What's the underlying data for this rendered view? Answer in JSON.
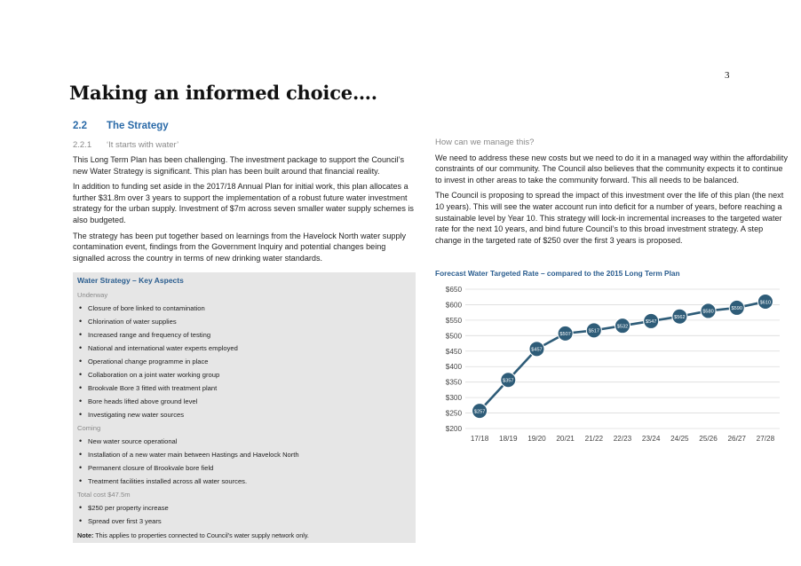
{
  "page_number": "3",
  "heading": "Making an informed choice….",
  "section": {
    "number": "2.2",
    "title": "The Strategy"
  },
  "subsection": {
    "number": "2.2.1",
    "title": "‘It starts with water’"
  },
  "left_paragraphs": [
    "This Long Term Plan has been challenging. The investment package to support the Council’s new Water Strategy is significant. This plan has been built around that financial reality.",
    "In addition to funding set aside in the 2017/18 Annual Plan for initial work, this plan allocates a further $31.8m over 3 years to support the implementation of a robust future water investment strategy for the urban supply. Investment of $7m across seven smaller water supply schemes is also budgeted.",
    "The strategy has been put together based on learnings from the Havelock North water supply contamination event, findings from the Government Inquiry and potential changes being signalled across the country in terms of new drinking water standards."
  ],
  "key_aspects": {
    "title": "Water Strategy – Key Aspects",
    "underway_label": "Underway",
    "underway": [
      "Closure of bore linked to contamination",
      "Chlorination of water supplies",
      "Increased range and frequency of testing",
      "National and international water experts employed",
      "Operational change programme in place",
      "Collaboration on a joint water working group",
      "Brookvale Bore 3 fitted with treatment plant",
      "Bore heads lifted above ground level",
      "Investigating new water sources"
    ],
    "coming_label": "Coming",
    "coming": [
      "New water source operational",
      "Installation of a new water main between Hastings and Havelock North",
      "Permanent closure of Brookvale bore field",
      "Treatment facilities installed across all water sources."
    ],
    "cost_label": "Total cost $47.5m",
    "cost": [
      "$250 per property increase",
      "Spread over first 3 years"
    ],
    "note_label": "Note:",
    "note_text": " This applies to properties connected to Council’s water supply network only."
  },
  "right_question": "How can we manage this?",
  "right_paragraphs": [
    "We need to address these new costs but we need to do it in a managed way within the affordability constraints of our community. The Council also believes that the community expects it to continue to invest in other areas to take the community forward. This all needs to be balanced.",
    "The Council is proposing to spread the impact of this investment over the life of this plan (the next 10 years). This will see the water account run into deficit for a number of years, before reaching a sustainable level by Year 10. This strategy will lock-in incremental increases to the targeted water rate for the next 10 years, and bind future Council’s to this broad investment strategy. A step change in the targeted rate of $250 over the first 3 years is proposed."
  ],
  "chart_data": {
    "type": "line",
    "title": "Forecast Water Targeted Rate – compared to the 2015 Long Term Plan",
    "categories": [
      "17/18",
      "18/19",
      "19/20",
      "20/21",
      "21/22",
      "22/23",
      "23/24",
      "24/25",
      "25/26",
      "26/27",
      "27/28"
    ],
    "values": [
      257,
      357,
      457,
      507,
      517,
      532,
      547,
      562,
      580,
      590,
      610
    ],
    "point_labels": [
      "$257",
      "$357",
      "$457",
      "$507",
      "$517",
      "$532",
      "$547",
      "$562",
      "$580",
      "$590",
      "$610"
    ],
    "ylim": [
      200,
      650
    ],
    "yticks": [
      200,
      250,
      300,
      350,
      400,
      450,
      500,
      550,
      600,
      650
    ],
    "ytick_labels": [
      "$200",
      "$250",
      "$300",
      "$350",
      "$400",
      "$450",
      "$500",
      "$550",
      "$600",
      "$650"
    ],
    "grid": true,
    "colors": {
      "line": "#2e5c78",
      "marker": "#2e5c78",
      "grid": "#dcdcdc"
    }
  }
}
